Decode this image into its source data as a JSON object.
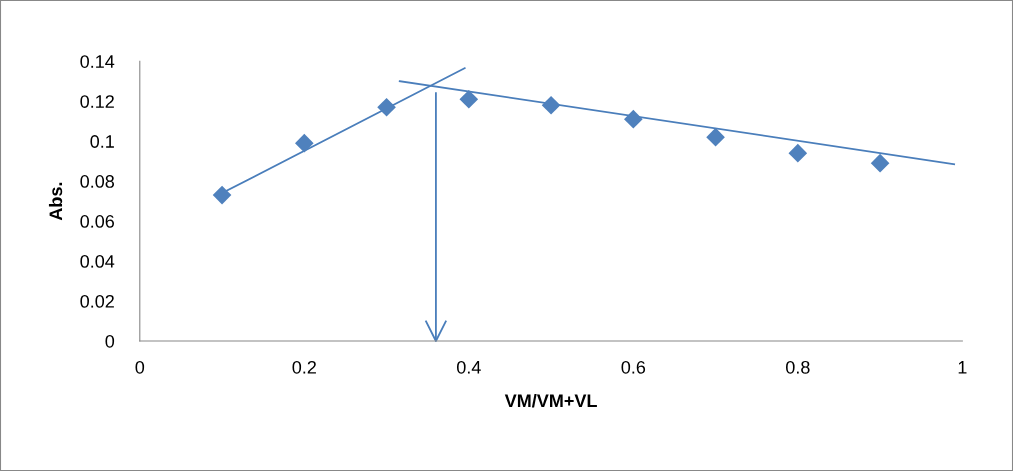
{
  "chart_data": {
    "type": "scatter",
    "xlabel": "VM/VM+VL",
    "ylabel": "Abs.",
    "xlim": [
      0,
      1
    ],
    "xticks": [
      0,
      0.2,
      0.4,
      0.6,
      0.8,
      1
    ],
    "ylim": [
      0,
      0.14
    ],
    "yticks": [
      0,
      0.02,
      0.04,
      0.06,
      0.08,
      0.1,
      0.12,
      0.14
    ],
    "grid": false,
    "series": [
      {
        "color": "#4f81bd",
        "marker": "diamond",
        "x": [
          0.1,
          0.2,
          0.3,
          0.4,
          0.5,
          0.6,
          0.7,
          0.8,
          0.9
        ],
        "values": [
          0.073,
          0.099,
          0.117,
          0.121,
          0.118,
          0.111,
          0.102,
          0.094,
          0.089
        ]
      },
      {
        "type": "line",
        "color": "#4a7ebb",
        "marker": "none",
        "x": [
          0.1,
          0.395
        ],
        "values": [
          0.074,
          0.1365
        ]
      },
      {
        "type": "line",
        "color": "#4a7ebb",
        "marker": "none",
        "x": [
          0.316,
          0.99
        ],
        "values": [
          0.13,
          0.0885
        ]
      },
      {
        "type": "line",
        "color": "#4a7ebb",
        "marker": "none",
        "x": [
          0.36,
          0.36
        ],
        "values": [
          0.124,
          0
        ]
      }
    ]
  }
}
